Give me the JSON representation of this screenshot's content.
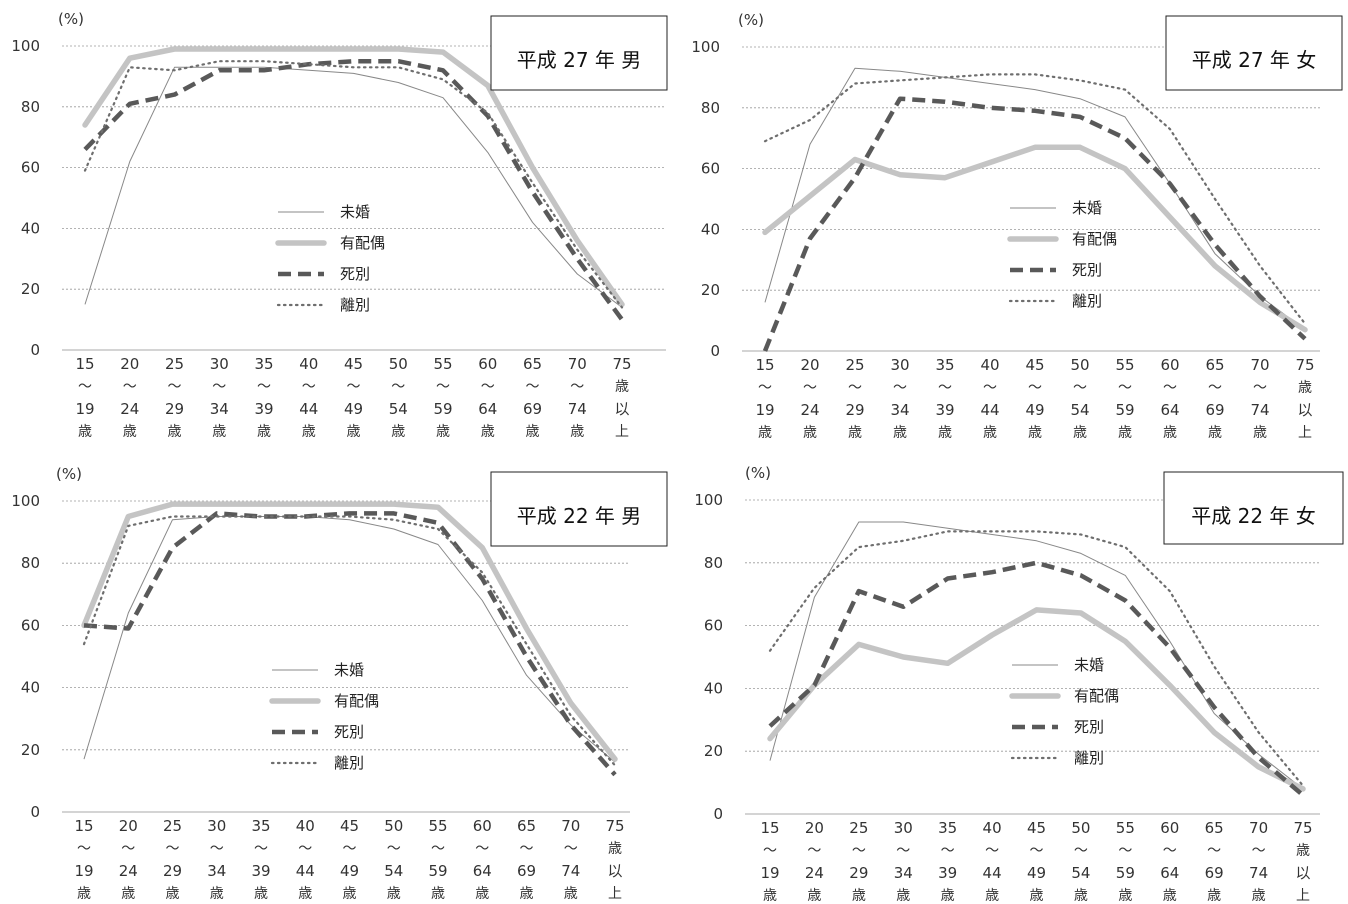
{
  "legend_labels": [
    "未婚",
    "有配偶",
    "死別",
    "離別"
  ],
  "unit_label": "(%)",
  "y_ticks": [
    0,
    20,
    40,
    60,
    80,
    100
  ],
  "x_tick_top": [
    "15",
    "20",
    "25",
    "30",
    "35",
    "40",
    "45",
    "50",
    "55",
    "60",
    "65",
    "70",
    "75"
  ],
  "x_tick_mid": [
    "〜",
    "〜",
    "〜",
    "〜",
    "〜",
    "〜",
    "〜",
    "〜",
    "〜",
    "〜",
    "〜",
    "〜",
    "歳"
  ],
  "x_tick_low": [
    "19",
    "24",
    "29",
    "34",
    "39",
    "44",
    "49",
    "54",
    "59",
    "64",
    "69",
    "74",
    "以"
  ],
  "x_tick_bottom": [
    "歳",
    "歳",
    "歳",
    "歳",
    "歳",
    "歳",
    "歳",
    "歳",
    "歳",
    "歳",
    "歳",
    "歳",
    "上"
  ],
  "series_colors": {
    "未婚": "#888888",
    "有配偶": "#c4c4c4",
    "死別": "#595959",
    "離別": "#6e6e6e"
  },
  "chart_data": [
    {
      "type": "line",
      "title": "平成 27 年 男",
      "categories": [
        "15〜19歳",
        "20〜24歳",
        "25〜29歳",
        "30〜34歳",
        "35〜39歳",
        "40〜44歳",
        "45〜49歳",
        "50〜54歳",
        "55〜59歳",
        "60〜64歳",
        "65〜69歳",
        "70〜74歳",
        "75歳以上"
      ],
      "ylim": [
        0,
        100
      ],
      "grid": true,
      "legend_position": "center",
      "series": [
        {
          "name": "未婚",
          "values": [
            15,
            62,
            93,
            93,
            93,
            92,
            91,
            88,
            83,
            65,
            42,
            25,
            14
          ]
        },
        {
          "name": "有配偶",
          "values": [
            74,
            96,
            99,
            99,
            99,
            99,
            99,
            99,
            98,
            87,
            60,
            36,
            15
          ]
        },
        {
          "name": "死別",
          "values": [
            66,
            81,
            84,
            92,
            92,
            94,
            95,
            95,
            92,
            77,
            52,
            30,
            10
          ]
        },
        {
          "name": "離別",
          "values": [
            59,
            93,
            92,
            95,
            95,
            94,
            93,
            93,
            89,
            78,
            55,
            33,
            14
          ]
        }
      ]
    },
    {
      "type": "line",
      "title": "平成 27 年 女",
      "categories": [
        "15〜19歳",
        "20〜24歳",
        "25〜29歳",
        "30〜34歳",
        "35〜39歳",
        "40〜44歳",
        "45〜49歳",
        "50〜54歳",
        "55〜59歳",
        "60〜64歳",
        "65〜69歳",
        "70〜74歳",
        "75歳以上"
      ],
      "ylim": [
        0,
        100
      ],
      "grid": true,
      "legend_position": "center",
      "series": [
        {
          "name": "未婚",
          "values": [
            16,
            68,
            93,
            92,
            90,
            88,
            86,
            83,
            77,
            55,
            32,
            18,
            7
          ]
        },
        {
          "name": "有配偶",
          "values": [
            39,
            51,
            63,
            58,
            57,
            62,
            67,
            67,
            60,
            44,
            28,
            16,
            7
          ]
        },
        {
          "name": "死別",
          "values": [
            0,
            37,
            57,
            83,
            82,
            80,
            79,
            77,
            70,
            55,
            35,
            18,
            4
          ]
        },
        {
          "name": "離別",
          "values": [
            69,
            76,
            88,
            89,
            90,
            91,
            91,
            89,
            86,
            73,
            50,
            28,
            9
          ]
        }
      ]
    },
    {
      "type": "line",
      "title": "平成 22 年 男",
      "categories": [
        "15〜19歳",
        "20〜24歳",
        "25〜29歳",
        "30〜34歳",
        "35〜39歳",
        "40〜44歳",
        "45〜49歳",
        "50〜54歳",
        "55〜59歳",
        "60〜64歳",
        "65〜69歳",
        "70〜74歳",
        "75歳以上"
      ],
      "ylim": [
        0,
        100
      ],
      "grid": true,
      "legend_position": "center",
      "series": [
        {
          "name": "未婚",
          "values": [
            17,
            64,
            94,
            95,
            95,
            95,
            94,
            91,
            86,
            68,
            44,
            28,
            16
          ]
        },
        {
          "name": "有配偶",
          "values": [
            60,
            95,
            99,
            99,
            99,
            99,
            99,
            99,
            98,
            85,
            59,
            35,
            17
          ]
        },
        {
          "name": "死別",
          "values": [
            60,
            59,
            85,
            96,
            95,
            95,
            96,
            96,
            93,
            75,
            50,
            28,
            12
          ]
        },
        {
          "name": "離別",
          "values": [
            54,
            92,
            95,
            95,
            95,
            95,
            95,
            94,
            91,
            77,
            54,
            31,
            15
          ]
        }
      ]
    },
    {
      "type": "line",
      "title": "平成 22 年 女",
      "categories": [
        "15〜19歳",
        "20〜24歳",
        "25〜29歳",
        "30〜34歳",
        "35〜39歳",
        "40〜44歳",
        "45〜49歳",
        "50〜54歳",
        "55〜59歳",
        "60〜64歳",
        "65〜69歳",
        "70〜74歳",
        "75歳以上"
      ],
      "ylim": [
        0,
        100
      ],
      "grid": true,
      "legend_position": "center",
      "series": [
        {
          "name": "未婚",
          "values": [
            17,
            69,
            93,
            93,
            91,
            89,
            87,
            83,
            76,
            55,
            32,
            19,
            8
          ]
        },
        {
          "name": "有配偶",
          "values": [
            24,
            41,
            54,
            50,
            48,
            57,
            65,
            64,
            55,
            41,
            26,
            15,
            8
          ]
        },
        {
          "name": "死別",
          "values": [
            28,
            41,
            71,
            66,
            75,
            77,
            80,
            76,
            68,
            53,
            34,
            18,
            6
          ]
        },
        {
          "name": "離別",
          "values": [
            52,
            72,
            85,
            87,
            90,
            90,
            90,
            89,
            85,
            71,
            47,
            26,
            9
          ]
        }
      ]
    }
  ]
}
